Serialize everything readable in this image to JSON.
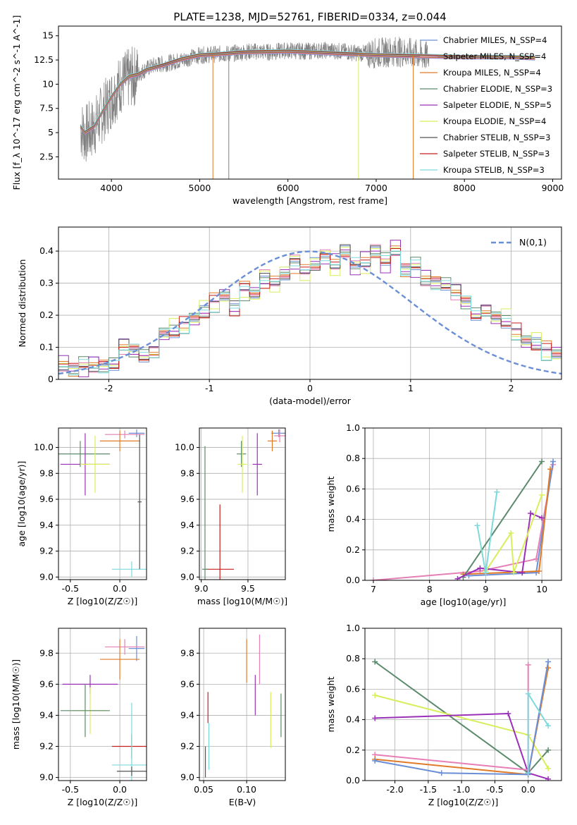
{
  "series_legend": [
    {
      "name": "Chabrier MILES, N_SSP=4",
      "color": "#6a8fd6"
    },
    {
      "name": "Salpeter MILES, N_SSP=4",
      "color": "#e67fb5"
    },
    {
      "name": "Kroupa MILES, N_SSP=4",
      "color": "#e07b2a"
    },
    {
      "name": "Chabrier ELODIE, N_SSP=3",
      "color": "#5b8a6b"
    },
    {
      "name": "Salpeter ELODIE, N_SSP=5",
      "color": "#9b30b8"
    },
    {
      "name": "Kroupa ELODIE, N_SSP=4",
      "color": "#d8ee5a"
    },
    {
      "name": "Chabrier STELIB, N_SSP=3",
      "color": "#555555"
    },
    {
      "name": "Salpeter STELIB, N_SSP=3",
      "color": "#c81e1e"
    },
    {
      "name": "Kroupa STELIB, N_SSP=3",
      "color": "#7ddadc"
    }
  ],
  "chart_data": [
    {
      "type": "line",
      "title": "PLATE=1238, MJD=52761, FIBERID=0334, z=0.044",
      "xlabel": "wavelength [Angstrom, rest frame]",
      "ylabel": "Flux [f_λ 10^-17 erg cm^-2 s^-1 A^-1]",
      "xlim": [
        3400,
        9100
      ],
      "ylim": [
        0.2,
        16
      ],
      "xticks": [
        4000,
        5000,
        6000,
        7000,
        8000,
        9000
      ],
      "yticks": [
        2.5,
        5.0,
        7.5,
        10.0,
        12.5,
        15.0
      ],
      "data_curve": {
        "color": "#808080",
        "x": [
          3650,
          3700,
          3800,
          3900,
          4000,
          4100,
          4200,
          4300,
          4400,
          4500,
          4600,
          4800,
          5000,
          5200,
          5400,
          5600,
          5800,
          6000,
          6200,
          6400,
          6600,
          6800,
          7000,
          7200,
          7400,
          7600
        ],
        "y": [
          5.5,
          4.8,
          5.5,
          7.0,
          8.5,
          10.0,
          10.6,
          11.0,
          11.6,
          12.0,
          12.1,
          12.5,
          13.0,
          13.1,
          13.2,
          13.4,
          13.3,
          13.5,
          13.4,
          13.5,
          13.4,
          13.2,
          13.2,
          13.4,
          13.2,
          12.8
        ]
      },
      "model_curve": {
        "x": [
          3650,
          3700,
          3800,
          3900,
          4000,
          4100,
          4200,
          4300,
          4400,
          4600,
          4800,
          5000,
          5200,
          5500,
          6000,
          6500,
          7000,
          7500,
          8000,
          8500,
          8800
        ],
        "y": [
          5.6,
          5.0,
          5.6,
          7.2,
          8.7,
          10.0,
          10.8,
          11.0,
          11.5,
          12.0,
          12.6,
          13.0,
          13.1,
          13.3,
          13.4,
          13.2,
          13.0,
          12.9,
          12.8,
          12.8,
          12.7
        ]
      }
    },
    {
      "type": "bar",
      "xlabel": "(data-model)/error",
      "ylabel": "Normed distribution",
      "xlim": [
        -2.5,
        2.5
      ],
      "ylim": [
        0,
        0.475
      ],
      "xticks": [
        -2,
        -1,
        0,
        1,
        2
      ],
      "yticks": [
        0.0,
        0.1,
        0.2,
        0.3,
        0.4
      ],
      "reference_label": "N(0,1)",
      "bin_edges_start": -2.5,
      "bin_width": 0.1,
      "values": [
        0.05,
        0.03,
        0.04,
        0.05,
        0.04,
        0.04,
        0.11,
        0.09,
        0.07,
        0.09,
        0.14,
        0.15,
        0.17,
        0.19,
        0.21,
        0.24,
        0.26,
        0.22,
        0.28,
        0.27,
        0.31,
        0.3,
        0.33,
        0.36,
        0.34,
        0.36,
        0.38,
        0.36,
        0.4,
        0.35,
        0.37,
        0.4,
        0.36,
        0.41,
        0.34,
        0.35,
        0.32,
        0.3,
        0.29,
        0.28,
        0.24,
        0.2,
        0.22,
        0.19,
        0.18,
        0.15,
        0.12,
        0.11,
        0.09,
        0.08,
        0.07,
        0.06,
        0.05,
        0.05,
        0.04,
        0.03,
        0.04,
        0.03,
        0.02,
        0.02
      ]
    },
    {
      "type": "scatter",
      "xlabel": "Z [log10(Z/Z☉)]",
      "ylabel": "age [log10(age/yr)]",
      "xlim": [
        -0.62,
        0.27
      ],
      "ylim": [
        8.98,
        10.15
      ],
      "xticks": [
        "-0.5",
        "0.0"
      ],
      "yticks": [
        "9.0",
        "9.2",
        "9.4",
        "9.6",
        "9.8",
        "10.0"
      ],
      "points": [
        {
          "s": 0,
          "x": 0.17,
          "y": 10.11,
          "xerr": 0.08,
          "yerr": 0.03
        },
        {
          "s": 1,
          "x": 0.05,
          "y": 10.1,
          "xerr": 0.2,
          "yerr": 0.03
        },
        {
          "s": 2,
          "x": 0.0,
          "y": 10.05,
          "xerr": 0.2,
          "yerr": 0.08
        },
        {
          "s": 3,
          "x": -0.4,
          "y": 9.95,
          "xerr": 0.3,
          "yerr": 0.1
        },
        {
          "s": 4,
          "x": -0.35,
          "y": 9.87,
          "xerr": 0.25,
          "yerr": 0.24
        },
        {
          "s": 5,
          "x": -0.25,
          "y": 9.87,
          "xerr": 0.15,
          "yerr": 0.22
        },
        {
          "s": 8,
          "x": 0.12,
          "y": 9.06,
          "xerr": 0.2,
          "yerr": 0.06
        },
        {
          "s": 6,
          "x": 0.2,
          "y": 9.58,
          "xerr": 0.02,
          "yerr": 0.52
        }
      ]
    },
    {
      "type": "scatter",
      "xlabel": "mass [log10(M/M☉)]",
      "ylabel": "",
      "xlim": [
        8.98,
        9.9
      ],
      "ylim": [
        8.98,
        10.15
      ],
      "xticks": [
        "9.0",
        "9.5"
      ],
      "yticks": [
        "9.0",
        "9.2",
        "9.4",
        "9.6",
        "9.8",
        "10.0"
      ],
      "points": [
        {
          "s": 0,
          "x": 9.83,
          "y": 10.11,
          "xerr": 0.08,
          "yerr": 0.03
        },
        {
          "s": 1,
          "x": 9.84,
          "y": 10.09,
          "xerr": 0.06,
          "yerr": 0.05
        },
        {
          "s": 2,
          "x": 9.76,
          "y": 10.05,
          "xerr": 0.05,
          "yerr": 0.08
        },
        {
          "s": 3,
          "x": 9.43,
          "y": 9.95,
          "xerr": 0.05,
          "yerr": 0.1
        },
        {
          "s": 4,
          "x": 9.6,
          "y": 9.87,
          "xerr": 0.05,
          "yerr": 0.24
        },
        {
          "s": 5,
          "x": 9.44,
          "y": 9.87,
          "xerr": 0.05,
          "yerr": 0.22
        },
        {
          "s": 7,
          "x": 9.2,
          "y": 9.06,
          "xerr": 0.15,
          "yerr": 0.5
        },
        {
          "s": 3,
          "x": 9.04,
          "y": 9.06,
          "xerr": 0.03,
          "yerr": 0.95
        }
      ]
    },
    {
      "type": "line",
      "xlabel": "age [log10(age/yr)]",
      "ylabel": "mass weight",
      "xlim": [
        6.85,
        10.35
      ],
      "ylim": [
        0,
        1
      ],
      "xticks": [
        "7",
        "8",
        "9",
        "10"
      ],
      "yticks": [
        "0.0",
        "0.2",
        "0.4",
        "0.6",
        "0.8",
        "1.0"
      ],
      "series": [
        {
          "s": 1,
          "points": [
            [
              7.0,
              0.0
            ],
            [
              8.9,
              0.06
            ],
            [
              9.9,
              0.14
            ],
            [
              10.2,
              0.76
            ]
          ]
        },
        {
          "s": 0,
          "points": [
            [
              8.7,
              0.03
            ],
            [
              9.9,
              0.05
            ],
            [
              10.2,
              0.78
            ]
          ]
        },
        {
          "s": 2,
          "points": [
            [
              8.6,
              0.04
            ],
            [
              9.95,
              0.06
            ],
            [
              10.15,
              0.73
            ]
          ]
        },
        {
          "s": 3,
          "points": [
            [
              8.6,
              0.02
            ],
            [
              10.0,
              0.78
            ]
          ]
        },
        {
          "s": 4,
          "points": [
            [
              8.5,
              0.01
            ],
            [
              8.9,
              0.08
            ],
            [
              9.65,
              0.05
            ],
            [
              9.8,
              0.44
            ],
            [
              10.0,
              0.41
            ]
          ]
        },
        {
          "s": 5,
          "points": [
            [
              9.0,
              0.06
            ],
            [
              9.45,
              0.31
            ],
            [
              9.5,
              0.05
            ],
            [
              10.0,
              0.56
            ]
          ]
        },
        {
          "s": 8,
          "points": [
            [
              8.85,
              0.36
            ],
            [
              9.0,
              0.05
            ],
            [
              9.2,
              0.58
            ]
          ]
        }
      ]
    },
    {
      "type": "scatter",
      "xlabel": "Z [log10(Z/Z☉)]",
      "ylabel": "mass [log10(M/M☉)]",
      "xlim": [
        -0.62,
        0.27
      ],
      "ylim": [
        8.98,
        9.96
      ],
      "xticks": [
        "-0.5",
        "0.0"
      ],
      "yticks": [
        "9.0",
        "9.2",
        "9.4",
        "9.6",
        "9.8"
      ],
      "points": [
        {
          "s": 0,
          "x": 0.17,
          "y": 9.83,
          "xerr": 0.08,
          "yerr": 0.08
        },
        {
          "s": 1,
          "x": 0.05,
          "y": 9.84,
          "xerr": 0.2,
          "yerr": 0.05
        },
        {
          "s": 2,
          "x": 0.0,
          "y": 9.76,
          "xerr": 0.2,
          "yerr": 0.13
        },
        {
          "s": 4,
          "x": -0.3,
          "y": 9.6,
          "xerr": 0.28,
          "yerr": 0.06
        },
        {
          "s": 5,
          "x": -0.3,
          "y": 9.43,
          "xerr": 0.18,
          "yerr": 0.15
        },
        {
          "s": 3,
          "x": -0.35,
          "y": 9.43,
          "xerr": 0.25,
          "yerr": 0.17
        },
        {
          "s": 7,
          "x": 0.12,
          "y": 9.2,
          "xerr": 0.2,
          "yerr": 0.08
        },
        {
          "s": 8,
          "x": 0.12,
          "y": 9.08,
          "xerr": 0.2,
          "yerr": 0.4
        },
        {
          "s": 6,
          "x": 0.12,
          "y": 9.04,
          "xerr": 0.15,
          "yerr": 0.03
        }
      ]
    },
    {
      "type": "scatter",
      "xlabel": "E(B-V)",
      "ylabel": "",
      "xlim": [
        0.045,
        0.145
      ],
      "ylim": [
        8.98,
        9.96
      ],
      "xticks": [
        "0.05",
        "0.10"
      ],
      "yticks": [
        "9.0",
        "9.2",
        "9.4",
        "9.6",
        "9.8"
      ],
      "points": [
        {
          "s": 2,
          "x": 0.1,
          "y": 9.75,
          "xerr": 0,
          "yerr": 0.14
        },
        {
          "s": 1,
          "x": 0.115,
          "y": 9.76,
          "xerr": 0,
          "yerr": 0.16
        },
        {
          "s": 4,
          "x": 0.11,
          "y": 9.53,
          "xerr": 0,
          "yerr": 0.13
        },
        {
          "s": 5,
          "x": 0.128,
          "y": 9.37,
          "xerr": 0,
          "yerr": 0.18
        },
        {
          "s": 3,
          "x": 0.14,
          "y": 9.4,
          "xerr": 0,
          "yerr": 0.14
        },
        {
          "s": 7,
          "x": 0.055,
          "y": 9.45,
          "xerr": 0,
          "yerr": 0.1
        },
        {
          "s": 8,
          "x": 0.056,
          "y": 9.2,
          "xerr": 0,
          "yerr": 0.15
        },
        {
          "s": 6,
          "x": 0.052,
          "y": 9.1,
          "xerr": 0,
          "yerr": 0.1
        }
      ]
    },
    {
      "type": "line",
      "xlabel": "Z [log10(Z/Z☉)]",
      "ylabel": "mass weight",
      "xlim": [
        -2.45,
        0.5
      ],
      "ylim": [
        0,
        1
      ],
      "xticks": [
        "-2.0",
        "-1.5",
        "-1.0",
        "-0.5",
        "0.0"
      ],
      "yticks": [
        "0.0",
        "0.2",
        "0.4",
        "0.6",
        "0.8",
        "1.0"
      ],
      "series": [
        {
          "s": 3,
          "points": [
            [
              -2.3,
              0.78
            ],
            [
              0.0,
              0.05
            ],
            [
              0.3,
              0.2
            ]
          ]
        },
        {
          "s": 5,
          "points": [
            [
              -2.3,
              0.56
            ],
            [
              0.0,
              0.3
            ],
            [
              0.3,
              0.08
            ]
          ]
        },
        {
          "s": 4,
          "points": [
            [
              -2.3,
              0.41
            ],
            [
              -0.3,
              0.44
            ],
            [
              0.0,
              0.05
            ],
            [
              0.3,
              0.01
            ]
          ]
        },
        {
          "s": 1,
          "points": [
            [
              -2.3,
              0.17
            ],
            [
              0.0,
              0.07
            ],
            [
              0.0,
              0.76
            ]
          ]
        },
        {
          "s": 2,
          "points": [
            [
              -2.3,
              0.14
            ],
            [
              0.0,
              0.04
            ],
            [
              0.3,
              0.74
            ]
          ]
        },
        {
          "s": 0,
          "points": [
            [
              -2.3,
              0.13
            ],
            [
              -1.3,
              0.05
            ],
            [
              0.0,
              0.04
            ],
            [
              0.3,
              0.78
            ]
          ]
        },
        {
          "s": 8,
          "points": [
            [
              0.0,
              0.05
            ],
            [
              0.0,
              0.57
            ],
            [
              0.3,
              0.36
            ]
          ]
        }
      ]
    }
  ]
}
